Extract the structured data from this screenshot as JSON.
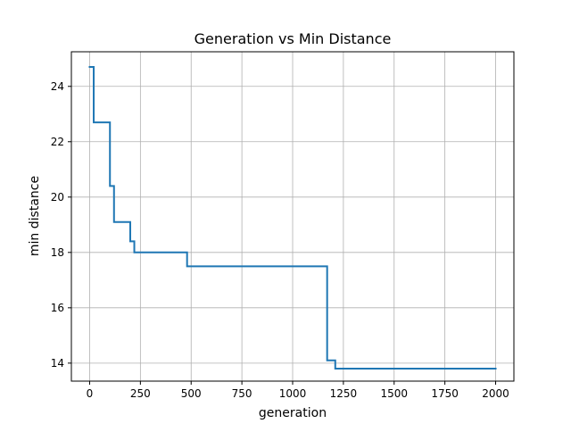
{
  "chart_data": {
    "type": "line",
    "title": "Generation vs Min Distance",
    "xlabel": "generation",
    "ylabel": "min distance",
    "xlim": [
      -90,
      2090
    ],
    "ylim": [
      13.35,
      25.25
    ],
    "xticks": [
      0,
      250,
      500,
      750,
      1000,
      1250,
      1500,
      1750,
      2000
    ],
    "xtick_labels": [
      "0",
      "250",
      "500",
      "750",
      "1000",
      "1250",
      "1500",
      "1750",
      "2000"
    ],
    "yticks": [
      14,
      16,
      18,
      20,
      22,
      24
    ],
    "ytick_labels": [
      "14",
      "16",
      "18",
      "20",
      "22",
      "24"
    ],
    "grid": true,
    "series": [
      {
        "color": "#1f77b4",
        "step": true,
        "x": [
          0,
          20,
          100,
          120,
          200,
          220,
          480,
          1170,
          1210,
          2000
        ],
        "y": [
          24.7,
          22.7,
          20.4,
          19.1,
          18.4,
          18.0,
          17.5,
          14.1,
          13.8,
          13.8
        ]
      }
    ]
  }
}
